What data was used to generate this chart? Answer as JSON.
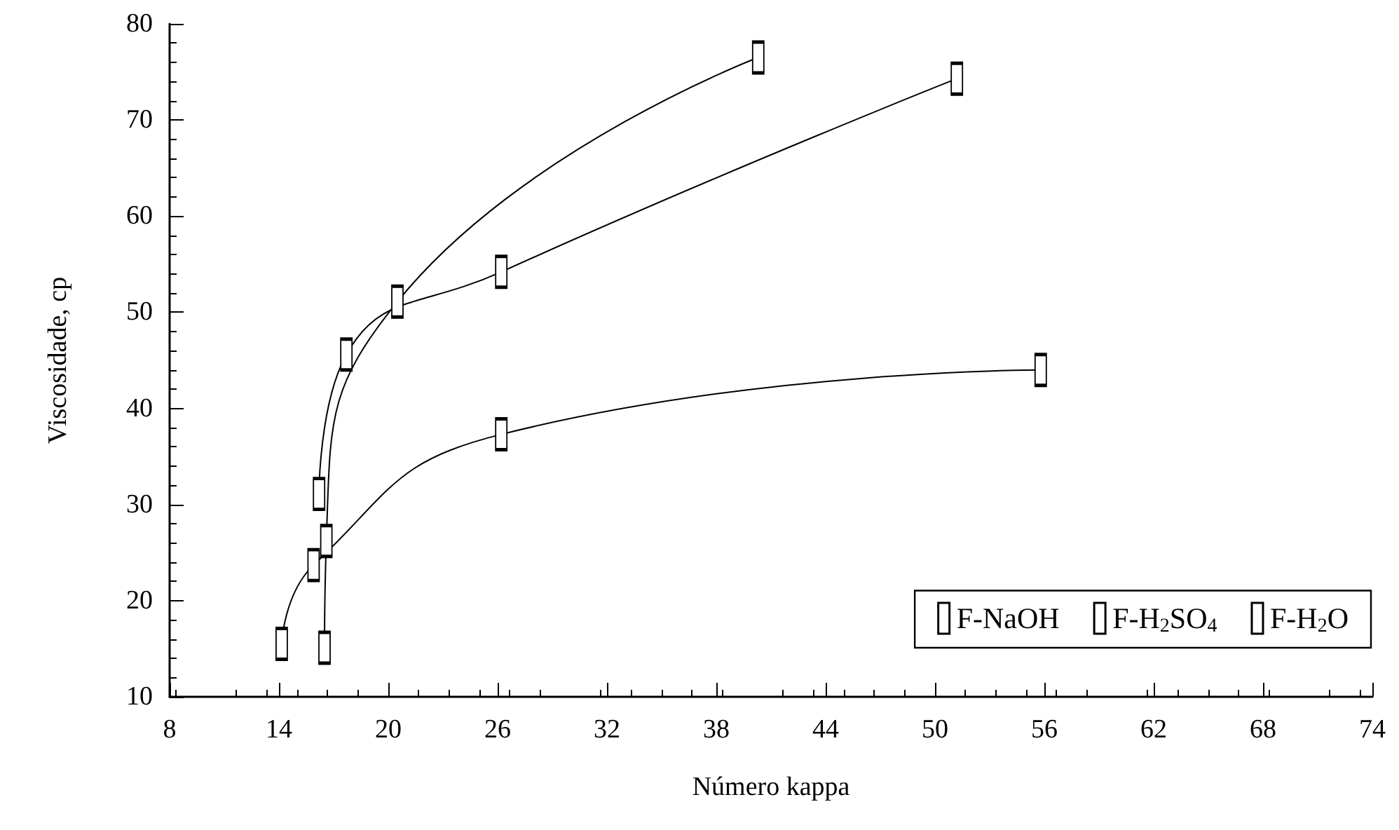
{
  "chart_data": {
    "type": "line",
    "xlabel": "Número kappa",
    "ylabel": "Viscosidade, cp",
    "xlim": [
      8,
      74
    ],
    "xticks": [
      8,
      14,
      20,
      26,
      32,
      38,
      44,
      50,
      56,
      62,
      68,
      74
    ],
    "ylim": [
      10,
      80
    ],
    "yticks": [
      10,
      20,
      30,
      40,
      50,
      60,
      70,
      80
    ],
    "grid": false,
    "legend": "bottom right",
    "marker": "square",
    "line_style": "solid",
    "series": [
      {
        "name": "F-NaOH",
        "color": "#000000",
        "x": [
          16.5,
          16.6,
          20.5,
          40.3
        ],
        "values": [
          15.1,
          26.2,
          51.1,
          76.5
        ]
      },
      {
        "name": "F-H$_{2}$SO$_{4}$",
        "color": "#000000",
        "x": [
          16.2,
          17.7,
          26.2,
          51.2
        ],
        "values": [
          31.1,
          45.6,
          54.2,
          74.3
        ]
      },
      {
        "name": "F-H$_{2}$O",
        "color": "#000000",
        "x": [
          14.15,
          15.9,
          26.2,
          55.8
        ],
        "values": [
          15.5,
          23.7,
          37.3,
          44.0
        ]
      }
    ]
  }
}
